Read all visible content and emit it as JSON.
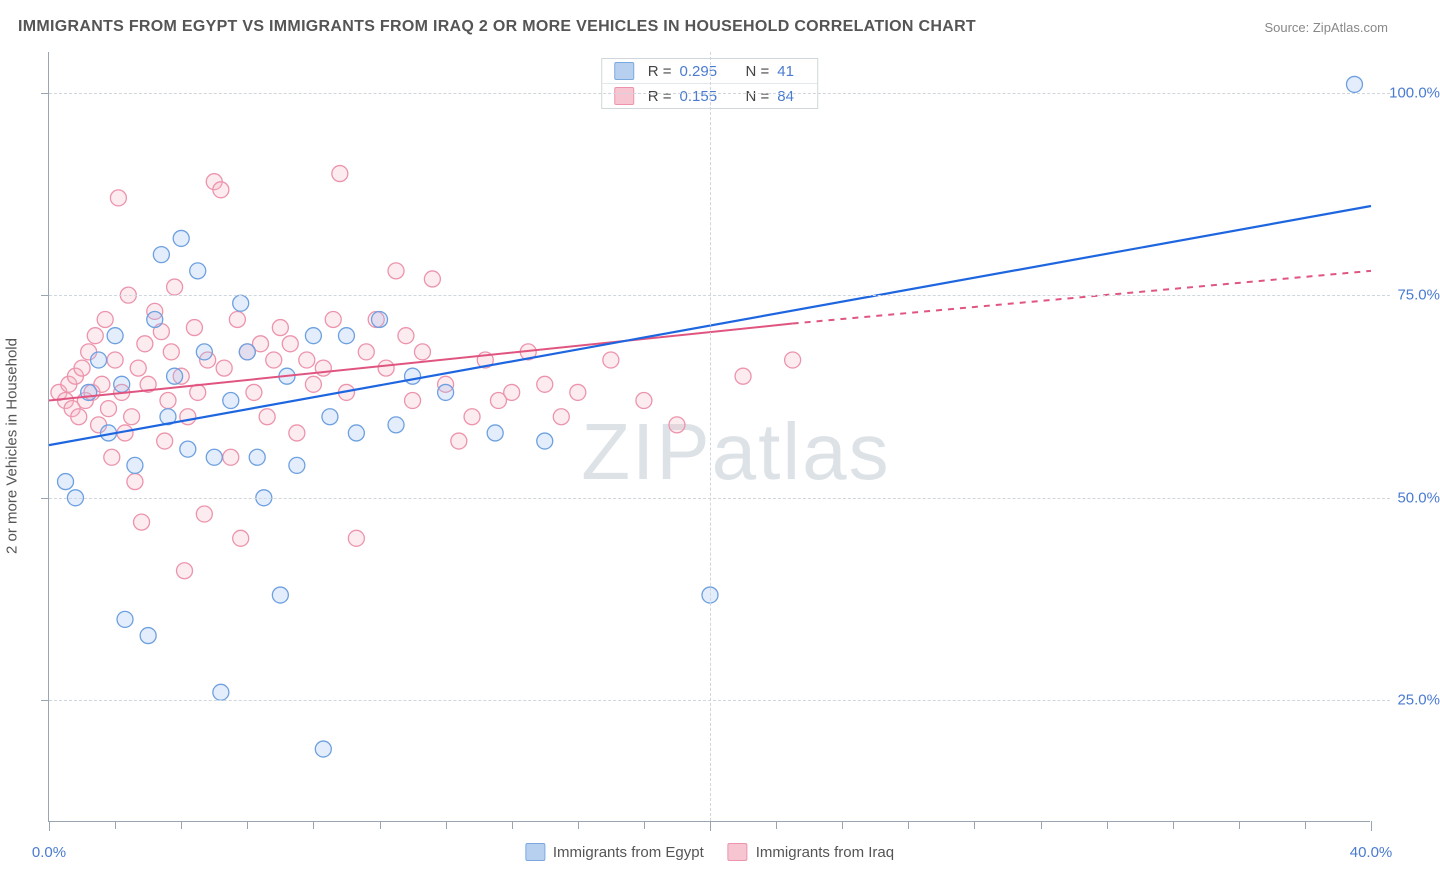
{
  "title": "IMMIGRANTS FROM EGYPT VS IMMIGRANTS FROM IRAQ 2 OR MORE VEHICLES IN HOUSEHOLD CORRELATION CHART",
  "source": "Source: ZipAtlas.com",
  "watermark": "ZIPatlas",
  "y_axis_label": "2 or more Vehicles in Household",
  "chart": {
    "type": "scatter",
    "xlim": [
      0,
      40
    ],
    "ylim": [
      10,
      105
    ],
    "x_ticks": [
      0,
      20,
      40
    ],
    "x_tick_labels": [
      "0.0%",
      "",
      "40.0%"
    ],
    "minor_x_ticks": [
      2,
      4,
      6,
      8,
      10,
      12,
      14,
      16,
      18,
      22,
      24,
      26,
      28,
      30,
      32,
      34,
      36,
      38
    ],
    "y_ticks": [
      25,
      50,
      75,
      100
    ],
    "y_tick_labels": [
      "25.0%",
      "50.0%",
      "75.0%",
      "100.0%"
    ],
    "grid_color": "#cfd6dc",
    "background_color": "#ffffff",
    "marker_radius": 8,
    "marker_fill_opacity": 0.28,
    "marker_stroke_width": 1.3,
    "series": [
      {
        "name": "Immigrants from Egypt",
        "color_fill": "#9dbff0",
        "color_stroke": "#6da0e0",
        "swatch_fill": "#b8d0ef",
        "swatch_stroke": "#7aa9e0",
        "R": "0.295",
        "N": "41",
        "trend": {
          "x1": 0,
          "y1": 56.5,
          "x2": 40,
          "y2": 86,
          "color": "#1e66e0",
          "width": 2.2
        },
        "points": [
          [
            0.5,
            52
          ],
          [
            0.8,
            50
          ],
          [
            1.2,
            63
          ],
          [
            1.5,
            67
          ],
          [
            1.8,
            58
          ],
          [
            2.0,
            70
          ],
          [
            2.2,
            64
          ],
          [
            2.3,
            35
          ],
          [
            2.6,
            54
          ],
          [
            3.0,
            33
          ],
          [
            3.2,
            72
          ],
          [
            3.4,
            80
          ],
          [
            3.6,
            60
          ],
          [
            3.8,
            65
          ],
          [
            4.0,
            82
          ],
          [
            4.2,
            56
          ],
          [
            4.5,
            78
          ],
          [
            4.7,
            68
          ],
          [
            5.0,
            55
          ],
          [
            5.2,
            26
          ],
          [
            5.5,
            62
          ],
          [
            5.8,
            74
          ],
          [
            6.0,
            68
          ],
          [
            6.3,
            55
          ],
          [
            6.5,
            50
          ],
          [
            7.0,
            38
          ],
          [
            7.2,
            65
          ],
          [
            7.5,
            54
          ],
          [
            8.0,
            70
          ],
          [
            8.3,
            19
          ],
          [
            8.5,
            60
          ],
          [
            9.0,
            70
          ],
          [
            9.3,
            58
          ],
          [
            10.0,
            72
          ],
          [
            10.5,
            59
          ],
          [
            11.0,
            65
          ],
          [
            12.0,
            63
          ],
          [
            13.5,
            58
          ],
          [
            15.0,
            57
          ],
          [
            20.0,
            38
          ],
          [
            39.5,
            101
          ]
        ]
      },
      {
        "name": "Immigrants from Iraq",
        "color_fill": "#f4b6c5",
        "color_stroke": "#ec94ac",
        "swatch_fill": "#f7c4d1",
        "swatch_stroke": "#ec94ac",
        "R": "0.155",
        "N": "84",
        "trend": {
          "x1": 0,
          "y1": 62,
          "x2": 22.5,
          "y2": 71.5,
          "x3": 40,
          "y3": 78,
          "x_solid_end": 22.5,
          "color": "#e05580",
          "width": 2
        },
        "points": [
          [
            0.3,
            63
          ],
          [
            0.5,
            62
          ],
          [
            0.6,
            64
          ],
          [
            0.7,
            61
          ],
          [
            0.8,
            65
          ],
          [
            0.9,
            60
          ],
          [
            1.0,
            66
          ],
          [
            1.1,
            62
          ],
          [
            1.2,
            68
          ],
          [
            1.3,
            63
          ],
          [
            1.4,
            70
          ],
          [
            1.5,
            59
          ],
          [
            1.6,
            64
          ],
          [
            1.7,
            72
          ],
          [
            1.8,
            61
          ],
          [
            1.9,
            55
          ],
          [
            2.0,
            67
          ],
          [
            2.1,
            87
          ],
          [
            2.2,
            63
          ],
          [
            2.3,
            58
          ],
          [
            2.4,
            75
          ],
          [
            2.5,
            60
          ],
          [
            2.6,
            52
          ],
          [
            2.7,
            66
          ],
          [
            2.8,
            47
          ],
          [
            2.9,
            69
          ],
          [
            3.0,
            64
          ],
          [
            3.2,
            73
          ],
          [
            3.4,
            70.5
          ],
          [
            3.5,
            57
          ],
          [
            3.6,
            62
          ],
          [
            3.7,
            68
          ],
          [
            3.8,
            76
          ],
          [
            4.0,
            65
          ],
          [
            4.1,
            41
          ],
          [
            4.2,
            60
          ],
          [
            4.4,
            71
          ],
          [
            4.5,
            63
          ],
          [
            4.7,
            48
          ],
          [
            4.8,
            67
          ],
          [
            5.0,
            89
          ],
          [
            5.2,
            88
          ],
          [
            5.3,
            66
          ],
          [
            5.5,
            55
          ],
          [
            5.7,
            72
          ],
          [
            5.8,
            45
          ],
          [
            6.0,
            68
          ],
          [
            6.2,
            63
          ],
          [
            6.4,
            69
          ],
          [
            6.6,
            60
          ],
          [
            6.8,
            67
          ],
          [
            7.0,
            71
          ],
          [
            7.3,
            69
          ],
          [
            7.5,
            58
          ],
          [
            7.8,
            67
          ],
          [
            8.0,
            64
          ],
          [
            8.3,
            66
          ],
          [
            8.6,
            72
          ],
          [
            8.8,
            90
          ],
          [
            9.0,
            63
          ],
          [
            9.3,
            45
          ],
          [
            9.6,
            68
          ],
          [
            9.9,
            72
          ],
          [
            10.2,
            66
          ],
          [
            10.5,
            78
          ],
          [
            10.8,
            70
          ],
          [
            11.0,
            62
          ],
          [
            11.3,
            68
          ],
          [
            11.6,
            77
          ],
          [
            12.0,
            64
          ],
          [
            12.4,
            57
          ],
          [
            12.8,
            60
          ],
          [
            13.2,
            67
          ],
          [
            13.6,
            62
          ],
          [
            14.0,
            63
          ],
          [
            14.5,
            68
          ],
          [
            15.0,
            64
          ],
          [
            15.5,
            60
          ],
          [
            16.0,
            63
          ],
          [
            17.0,
            67
          ],
          [
            18.0,
            62
          ],
          [
            19.0,
            59
          ],
          [
            21.0,
            65
          ],
          [
            22.5,
            67
          ]
        ]
      }
    ]
  },
  "legend_bottom": [
    {
      "label": "Immigrants from Egypt",
      "swatch_fill": "#b8d0ef",
      "swatch_stroke": "#7aa9e0"
    },
    {
      "label": "Immigrants from Iraq",
      "swatch_fill": "#f7c4d1",
      "swatch_stroke": "#ec94ac"
    }
  ]
}
